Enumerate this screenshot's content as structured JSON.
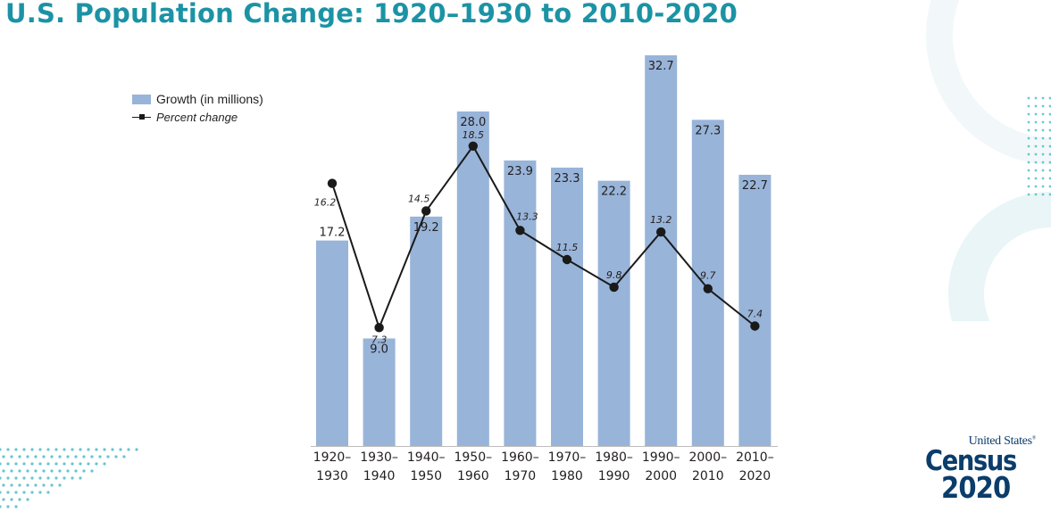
{
  "title": "U.S. Population Change: 1920–1930 to 2010-2020",
  "colors": {
    "title": "#1b93a5",
    "bar": "#98b4d9",
    "line": "#1a1a1a",
    "text": "#231f20",
    "logo": "#0b3d6b",
    "decoration": "#3fb6c4"
  },
  "legend": {
    "bars_label": "Growth (in millions)",
    "line_label": "Percent change"
  },
  "logo": {
    "top": "United States",
    "registered": "®",
    "middle": "Census",
    "bottom": "2020"
  },
  "chart_data": {
    "type": "bar",
    "legend_position": "top-left",
    "grid": false,
    "categories": [
      [
        "1920–",
        "1930"
      ],
      [
        "1930–",
        "1940"
      ],
      [
        "1940–",
        "1950"
      ],
      [
        "1950–",
        "1960"
      ],
      [
        "1960–",
        "1970"
      ],
      [
        "1970–",
        "1980"
      ],
      [
        "1980–",
        "1990"
      ],
      [
        "1990–",
        "2000"
      ],
      [
        "2000–",
        "2010"
      ],
      [
        "2010–",
        "2020"
      ]
    ],
    "series": [
      {
        "name": "Growth (in millions)",
        "type": "bar",
        "values": [
          17.2,
          9.0,
          19.2,
          28.0,
          23.9,
          23.3,
          22.2,
          32.7,
          27.3,
          22.7
        ],
        "labels": [
          "17.2",
          "9.0",
          "19.2",
          "28.0",
          "23.9",
          "23.3",
          "22.2",
          "32.7",
          "27.3",
          "22.7"
        ],
        "ylim": [
          0,
          32.7
        ]
      },
      {
        "name": "Percent change",
        "type": "line",
        "values": [
          16.2,
          7.3,
          14.5,
          18.5,
          13.3,
          11.5,
          9.8,
          13.2,
          9.7,
          7.4
        ],
        "labels": [
          "16.2",
          "7.3",
          "14.5",
          "18.5",
          "13.3",
          "11.5",
          "9.8",
          "13.2",
          "9.7",
          "7.4"
        ],
        "ylim": [
          0,
          24.1
        ]
      }
    ]
  }
}
